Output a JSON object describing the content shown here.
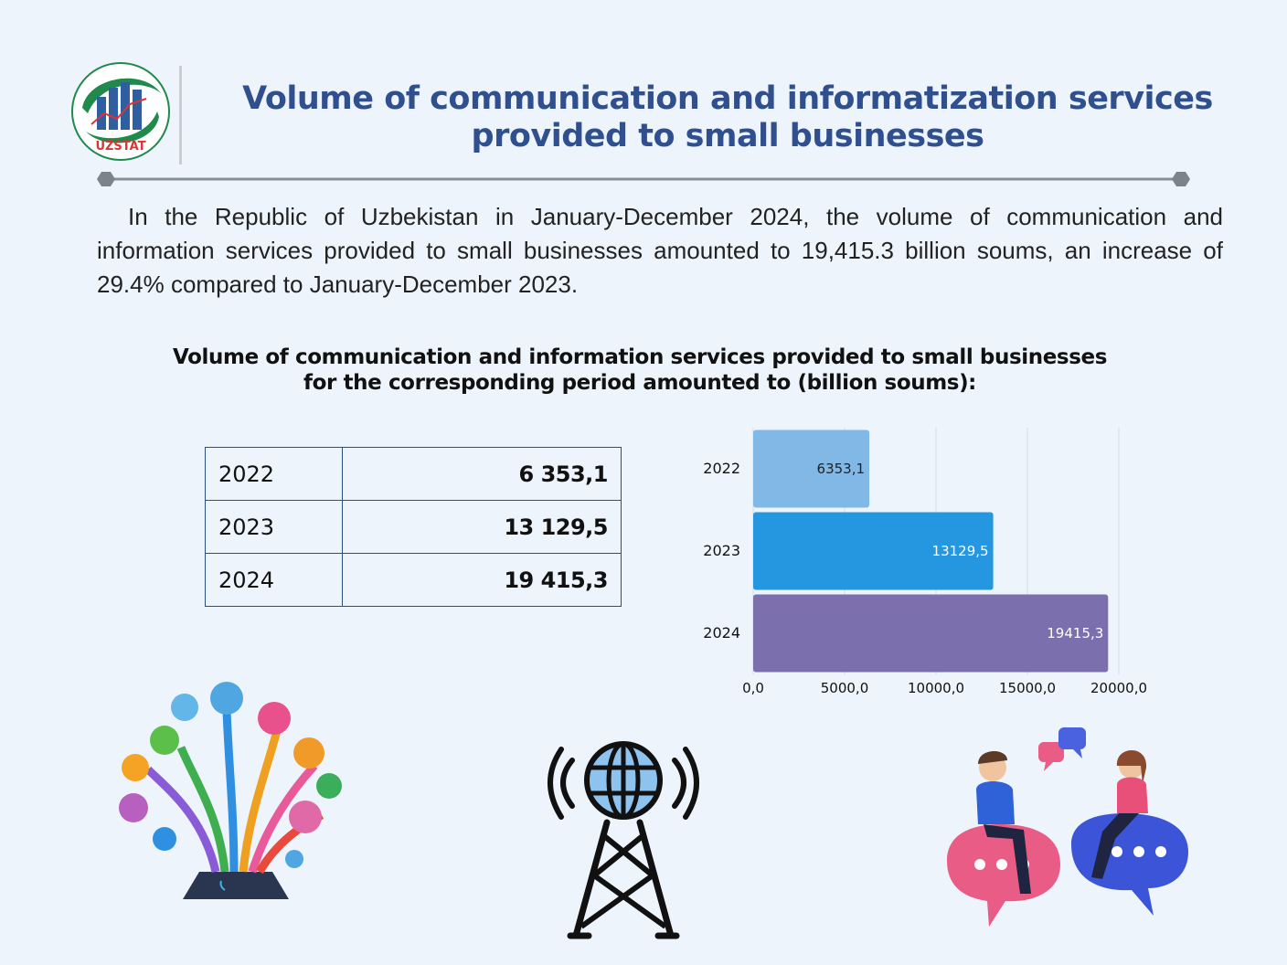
{
  "header": {
    "logo_text": "UZSTAT",
    "title_line1": "Volume of communication and informatization services",
    "title_line2": "provided to small businesses"
  },
  "intro": {
    "text": "In the Republic of Uzbekistan in January-December 2024, the volume of communication and information services provided to small businesses amounted to 19,415.3 billion soums, an increase of 29.4% compared to January-December 2023."
  },
  "chart_title": {
    "line1": "Volume of communication and information services provided to small businesses",
    "line2": "for the corresponding period amounted to (billion soums):"
  },
  "table": {
    "rows": [
      {
        "year": "2022",
        "value": "6 353,1"
      },
      {
        "year": "2023",
        "value": "13 129,5"
      },
      {
        "year": "2024",
        "value": "19 415,3"
      }
    ]
  },
  "chart_data": {
    "type": "bar",
    "orientation": "horizontal",
    "title": "Volume of communication and information services provided to small businesses for the corresponding period amounted to (billion soums):",
    "categories": [
      "2022",
      "2023",
      "2024"
    ],
    "values": [
      6353.1,
      13129.5,
      19415.3
    ],
    "data_labels": [
      "6353,1",
      "13129,5",
      "19415,3"
    ],
    "xlim": [
      0,
      20000
    ],
    "x_ticks": [
      0,
      5000,
      10000,
      15000,
      20000
    ],
    "x_tick_labels": [
      "0,0",
      "5000,0",
      "10000,0",
      "15000,0",
      "20000,0"
    ],
    "grid": true,
    "colors": [
      "#82b8e6",
      "#2596e0",
      "#7b70ad"
    ],
    "label_colors": [
      "#222222",
      "#ffffff",
      "#ffffff"
    ],
    "xlabel": "",
    "ylabel": ""
  },
  "colors": {
    "background": "#eef4fb",
    "title": "#2f4f8f",
    "table_border": "#2c4f82"
  },
  "icons": {
    "logo": "uzstat-logo-icon",
    "tree": "technology-tree-illustration",
    "tower": "radio-tower-globe-icon",
    "people": "chatting-people-illustration"
  }
}
